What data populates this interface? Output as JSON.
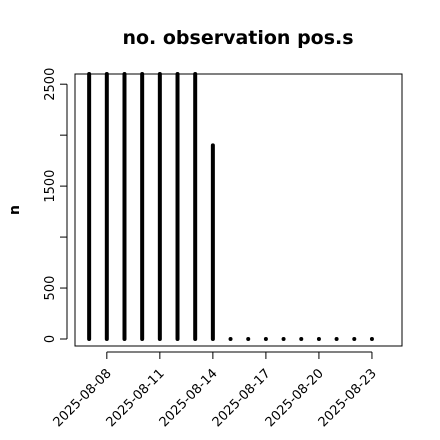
{
  "chart_data": {
    "type": "bar",
    "title": "no. observation pos.s",
    "xlabel": "",
    "ylabel": "n",
    "ylim": [
      0,
      2600
    ],
    "y_ticks": [
      0,
      500,
      1500,
      2500
    ],
    "x_tick_labels": [
      {
        "label": "2025-08-08",
        "day": 8,
        "color": "#000000"
      },
      {
        "label": "2025-08-11",
        "day": 11,
        "color": "#000000"
      },
      {
        "label": "2025-08-14",
        "day": 14,
        "color": "#228B22"
      },
      {
        "label": "2025-08-17",
        "day": 17,
        "color": "#000000"
      },
      {
        "label": "2025-08-20",
        "day": 20,
        "color": "#000000"
      },
      {
        "label": "2025-08-23",
        "day": 23,
        "color": "#000000"
      }
    ],
    "x_days": [
      7,
      8,
      9,
      10,
      11,
      12,
      13,
      14,
      15,
      16,
      17,
      18,
      19,
      20,
      21,
      22,
      23
    ],
    "x_dates": [
      "2025-08-07",
      "2025-08-08",
      "2025-08-09",
      "2025-08-10",
      "2025-08-11",
      "2025-08-12",
      "2025-08-13",
      "2025-08-14",
      "2025-08-15",
      "2025-08-16",
      "2025-08-17",
      "2025-08-18",
      "2025-08-19",
      "2025-08-20",
      "2025-08-21",
      "2025-08-22",
      "2025-08-23"
    ],
    "values": [
      2600,
      2600,
      2600,
      2600,
      2600,
      2600,
      2600,
      1900,
      0,
      0,
      0,
      0,
      0,
      0,
      0,
      0,
      0
    ],
    "xlim_days": [
      6.2,
      24.7
    ],
    "grid": false,
    "legend": "none",
    "colors": {
      "bars": "#000000",
      "highlight_label": "#228B22"
    }
  }
}
